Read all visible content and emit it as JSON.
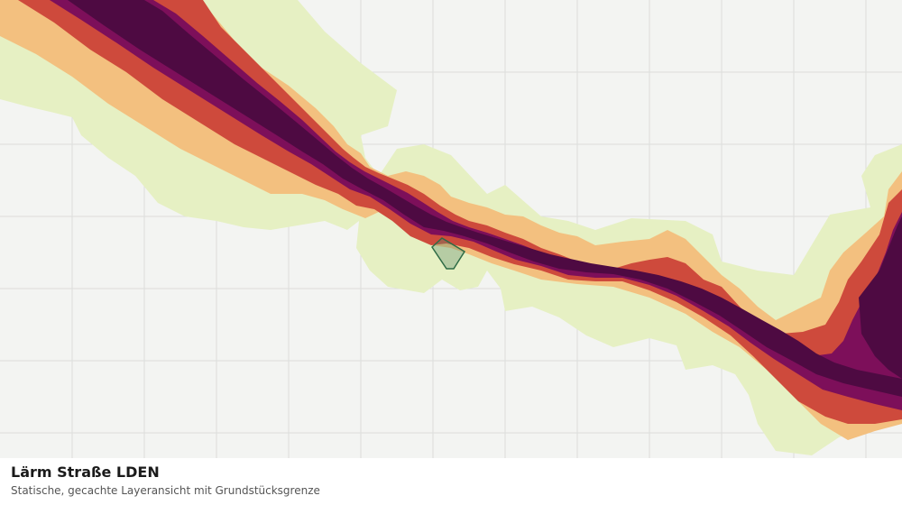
{
  "caption": {
    "title": "Lärm Straße LDEN",
    "subtitle": "Statische, gecachte Layeransicht mit Grundstücksgrenze"
  },
  "map": {
    "background_color": "#f3f4f2",
    "grid_color": "#dcdddb",
    "noise_classes": [
      {
        "name": "class-1",
        "color": "#e6f0c3"
      },
      {
        "name": "class-2",
        "color": "#f3c07f"
      },
      {
        "name": "class-3",
        "color": "#ce4a3c"
      },
      {
        "name": "class-4",
        "color": "#7d0f5a"
      },
      {
        "name": "class-5",
        "color": "#4e0a42"
      }
    ],
    "parcel": {
      "stroke_color": "#2e6b45",
      "fill_color": "#5c8a6a"
    }
  }
}
